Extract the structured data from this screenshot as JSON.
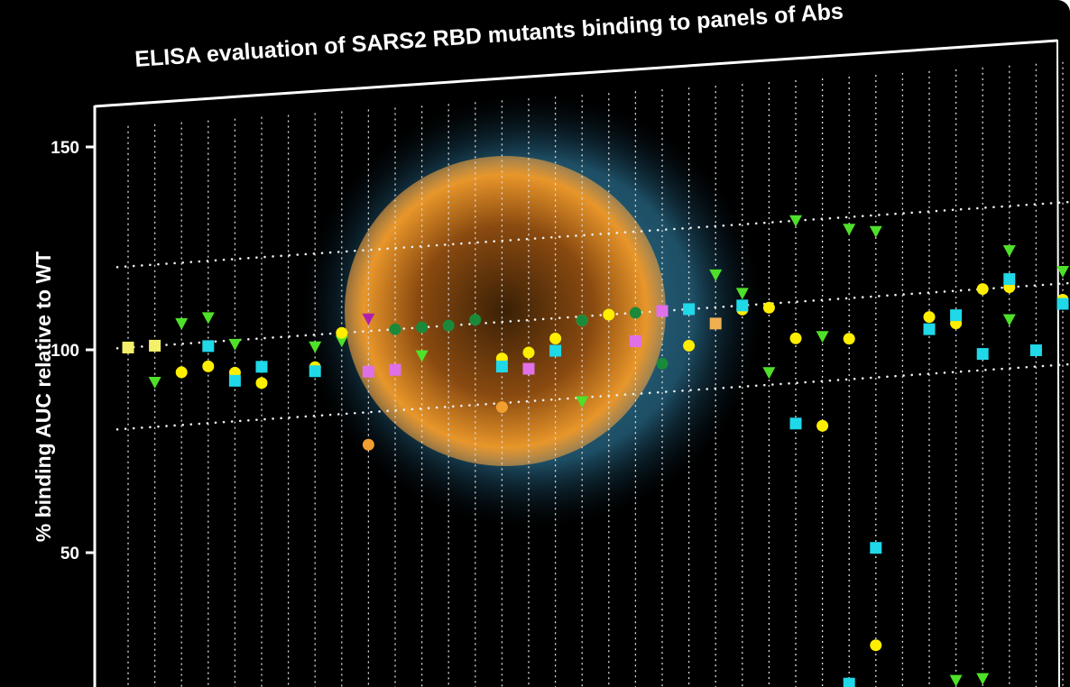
{
  "chart_data": {
    "type": "scatter",
    "title": "ELISA evaluation of SARS2 RBD mutants binding to panels of Abs",
    "xlabel": "",
    "ylabel": "% binding AUC relative to WT",
    "yticks": [
      "150",
      "100",
      "50"
    ],
    "ylim": [
      0,
      155
    ],
    "reference_lines": [
      80,
      100,
      120
    ],
    "grid": "vertical dotted lines per column",
    "background": "orange virus particle with blue halo behind plot",
    "series": [
      {
        "marker": "triangle-down",
        "color": "#4fe02a",
        "points": [
          [
            1,
            91
          ],
          [
            2,
            105
          ],
          [
            3,
            106
          ],
          [
            4,
            99
          ],
          [
            7,
            97
          ],
          [
            8,
            98
          ],
          [
            11,
            93
          ],
          [
            17,
            79
          ],
          [
            22,
            108
          ],
          [
            23,
            103
          ],
          [
            24,
            83
          ],
          [
            25,
            120
          ],
          [
            26,
            91
          ],
          [
            27,
            117
          ],
          [
            28,
            116
          ],
          [
            31,
            4
          ],
          [
            32,
            4
          ],
          [
            33,
            109
          ],
          [
            33,
            92
          ],
          [
            35,
            103
          ],
          [
            36,
            106
          ]
        ]
      },
      {
        "marker": "circle",
        "color": "#ffee00",
        "points": [
          [
            2,
            93
          ],
          [
            3,
            94
          ],
          [
            4,
            92
          ],
          [
            5,
            89
          ],
          [
            7,
            92
          ],
          [
            8,
            100
          ],
          [
            14,
            91
          ],
          [
            15,
            92
          ],
          [
            16,
            95
          ],
          [
            17,
            99
          ],
          [
            18,
            100
          ],
          [
            21,
            91
          ],
          [
            23,
            99
          ],
          [
            24,
            99
          ],
          [
            25,
            91
          ],
          [
            26,
            69
          ],
          [
            27,
            90
          ],
          [
            28,
            14
          ],
          [
            30,
            94
          ],
          [
            31,
            92
          ],
          [
            32,
            100
          ],
          [
            33,
            100
          ],
          [
            34,
            84
          ],
          [
            35,
            96
          ]
        ]
      },
      {
        "marker": "square",
        "color": "#1fd8e8",
        "points": [
          [
            3,
            99
          ],
          [
            4,
            90
          ],
          [
            5,
            93
          ],
          [
            7,
            91
          ],
          [
            14,
            89
          ],
          [
            16,
            92
          ],
          [
            21,
            100
          ],
          [
            23,
            100
          ],
          [
            25,
            70
          ],
          [
            27,
            5
          ],
          [
            28,
            38
          ],
          [
            30,
            91
          ],
          [
            31,
            94
          ],
          [
            32,
            84
          ],
          [
            33,
            102
          ],
          [
            34,
            84
          ],
          [
            35,
            95
          ]
        ]
      },
      {
        "marker": "square",
        "color": "#e070e8",
        "points": [
          [
            9,
            90
          ],
          [
            10,
            90
          ],
          [
            15,
            88
          ],
          [
            19,
            93
          ],
          [
            20,
            100
          ]
        ]
      },
      {
        "marker": "triangle-down",
        "color": "#b020b0",
        "points": [
          [
            9,
            103
          ]
        ]
      },
      {
        "marker": "circle",
        "color": "#1a8a3a",
        "points": [
          [
            10,
            100
          ],
          [
            11,
            100
          ],
          [
            12,
            100
          ],
          [
            13,
            101
          ],
          [
            17,
            99
          ],
          [
            19,
            100
          ],
          [
            20,
            87
          ]
        ]
      },
      {
        "marker": "circle",
        "color": "#f0a030",
        "points": [
          [
            9,
            72
          ],
          [
            14,
            79
          ]
        ]
      },
      {
        "marker": "square",
        "color": "#f0b050",
        "points": [
          [
            22,
            96
          ]
        ]
      },
      {
        "marker": "square",
        "color": "#f4f06a",
        "points": [
          [
            0,
            100
          ],
          [
            1,
            100
          ]
        ]
      }
    ]
  }
}
